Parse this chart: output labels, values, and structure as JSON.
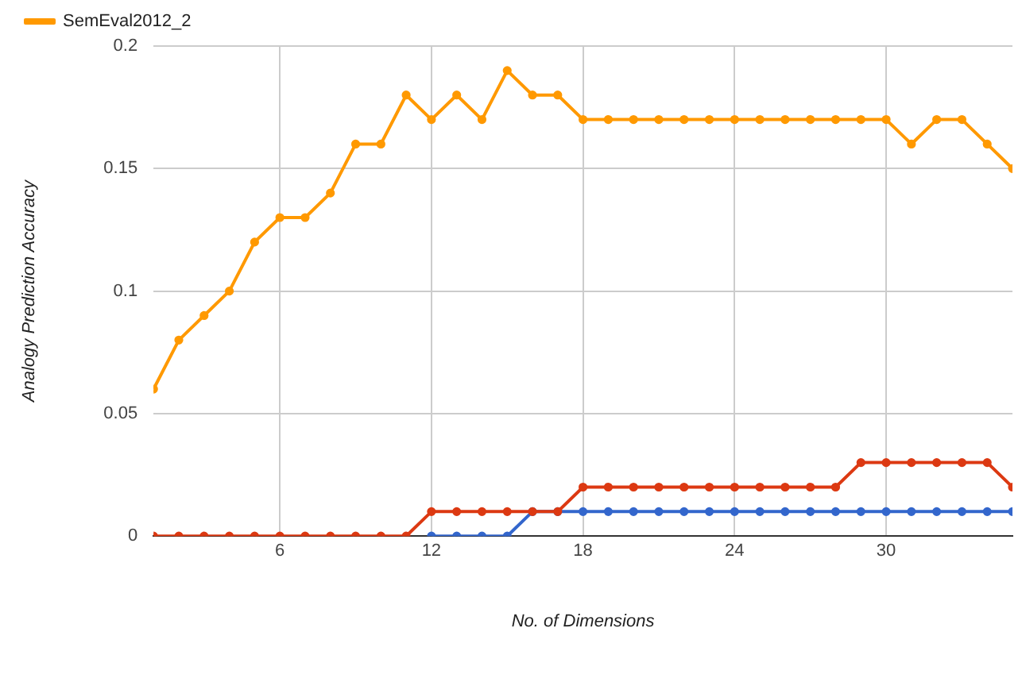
{
  "chart_data": {
    "type": "line",
    "xlabel": "No. of Dimensions",
    "ylabel": "Analogy Prediction Accuracy",
    "x": [
      1,
      2,
      3,
      4,
      5,
      6,
      7,
      8,
      9,
      10,
      11,
      12,
      13,
      14,
      15,
      16,
      17,
      18,
      19,
      20,
      21,
      22,
      23,
      24,
      25,
      26,
      27,
      28,
      29,
      30,
      31,
      32,
      33,
      34,
      35
    ],
    "series": [
      {
        "color": "#3366cc",
        "values": [
          null,
          null,
          null,
          null,
          null,
          null,
          null,
          null,
          null,
          null,
          null,
          0,
          0,
          0,
          0,
          0.01,
          0.01,
          0.01,
          0.01,
          0.01,
          0.01,
          0.01,
          0.01,
          0.01,
          0.01,
          0.01,
          0.01,
          0.01,
          0.01,
          0.01,
          0.01,
          0.01,
          0.01,
          0.01,
          0.01
        ]
      },
      {
        "color": "#dc3912",
        "values": [
          0,
          0,
          0,
          0,
          0,
          0,
          0,
          0,
          0,
          0,
          0,
          0.01,
          0.01,
          0.01,
          0.01,
          0.01,
          0.01,
          0.02,
          0.02,
          0.02,
          0.02,
          0.02,
          0.02,
          0.02,
          0.02,
          0.02,
          0.02,
          0.02,
          0.03,
          0.03,
          0.03,
          0.03,
          0.03,
          0.03,
          0.02
        ]
      },
      {
        "name": "SemEval2012_2",
        "color": "#ff9900",
        "values": [
          0.06,
          0.08,
          0.09,
          0.1,
          0.12,
          0.13,
          0.13,
          0.14,
          0.16,
          0.16,
          0.18,
          0.17,
          0.18,
          0.17,
          0.19,
          0.18,
          0.18,
          0.17,
          0.17,
          0.17,
          0.17,
          0.17,
          0.17,
          0.17,
          0.17,
          0.17,
          0.17,
          0.17,
          0.17,
          0.17,
          0.16,
          0.17,
          0.17,
          0.16,
          0.15
        ]
      }
    ],
    "xlim": [
      1,
      35
    ],
    "xticks": [
      6,
      12,
      18,
      24,
      30
    ],
    "ylim": [
      0,
      0.2
    ],
    "yticks": [
      0,
      0.05,
      0.1,
      0.15,
      0.2
    ],
    "grid": true,
    "legend": "top left",
    "marker": "circle",
    "line_style": "solid"
  }
}
